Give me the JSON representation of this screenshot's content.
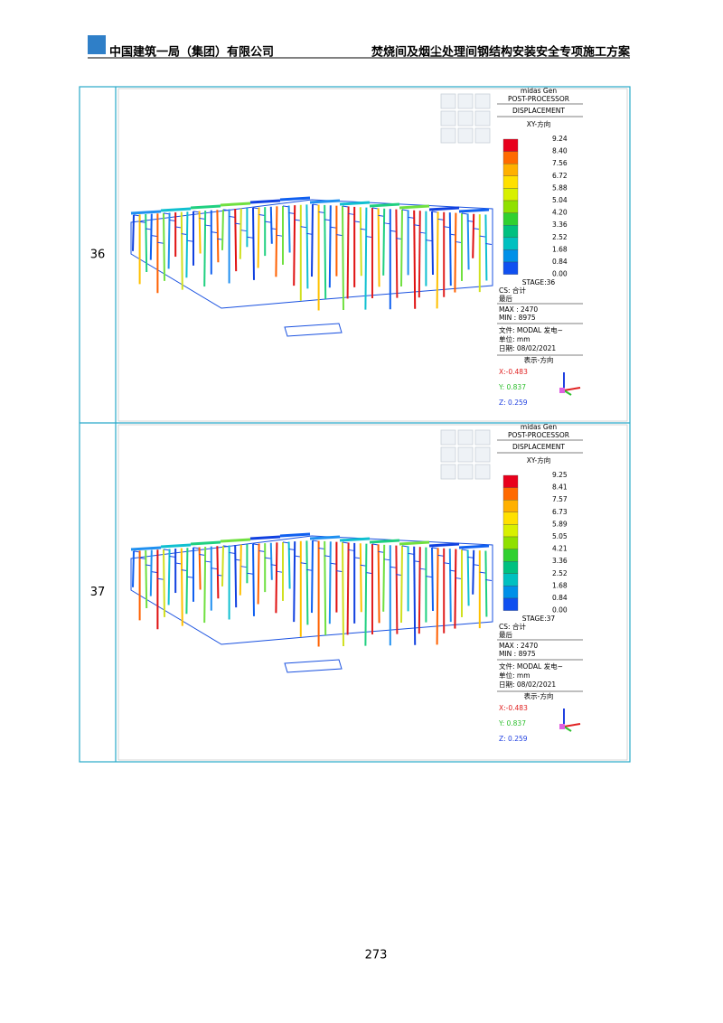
{
  "header": {
    "left": "中国建筑一局（集团）有限公司",
    "right": "焚烧间及烟尘处理间钢结构安装安全专项施工方案"
  },
  "table": {
    "rows": [
      {
        "label": "36",
        "panel": {
          "software": "midas Gen",
          "module": "POST-PROCESSOR",
          "result": "DISPLACEMENT",
          "component": "XY-方向",
          "scale": [
            "9.24",
            "8.40",
            "7.56",
            "6.72",
            "5.88",
            "5.04",
            "4.20",
            "3.36",
            "2.52",
            "1.68",
            "0.84",
            "0.00"
          ],
          "stage": "STAGE:36",
          "cs": "CS: 合计",
          "cs2": "最后",
          "max": "MAX : 2470",
          "min": "MIN : 8975",
          "file": "文件: MODAL 发电~",
          "unit": "单位: mm",
          "date": "日期: 08/02/2021",
          "view": "表示-方向",
          "x": "X:-0.483",
          "y": "Y: 0.837",
          "z": "Z: 0.259"
        }
      },
      {
        "label": "37",
        "panel": {
          "software": "midas Gen",
          "module": "POST-PROCESSOR",
          "result": "DISPLACEMENT",
          "component": "XY-方向",
          "scale": [
            "9.25",
            "8.41",
            "7.57",
            "6.73",
            "5.89",
            "5.05",
            "4.21",
            "3.36",
            "2.52",
            "1.68",
            "0.84",
            "0.00"
          ],
          "stage": "STAGE:37",
          "cs": "CS: 合计",
          "cs2": "最后",
          "max": "MAX : 2470",
          "min": "MIN : 8975",
          "file": "文件: MODAL 发电~",
          "unit": "单位: mm",
          "date": "日期: 08/02/2021",
          "view": "表示-方向",
          "x": "X:-0.483",
          "y": "Y: 0.837",
          "z": "Z: 0.259"
        }
      }
    ]
  },
  "page_number": "273"
}
